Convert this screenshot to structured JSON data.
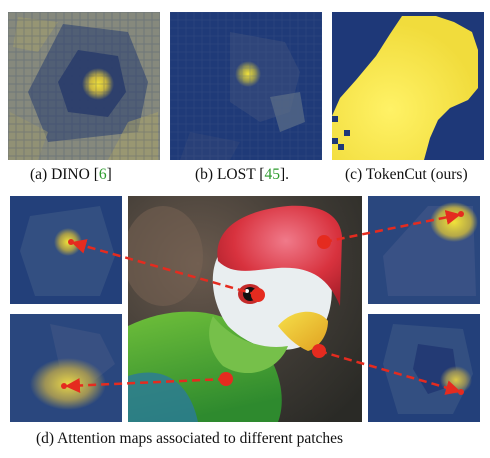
{
  "captions": {
    "a": {
      "text": "(a) DINO [",
      "ref": "6",
      "tail": "]"
    },
    "b": {
      "text": "(b) LOST [",
      "ref": "45",
      "tail": "]."
    },
    "c": {
      "text": "(c) TokenCut (ours)"
    },
    "d": {
      "text": "(d) Attention maps associated to different patches"
    }
  },
  "colors": {
    "map_dark": "#1f3a78",
    "map_mid": "#6b7a8a",
    "map_bright": "#f2e23a",
    "arrow": "#e52b1f",
    "reference_link": "#2e9b2e"
  },
  "panels": [
    {
      "id": "dino",
      "content": "attention-map"
    },
    {
      "id": "lost",
      "content": "attention-map"
    },
    {
      "id": "tokencut",
      "content": "segmentation-mask"
    },
    {
      "id": "bird-photo",
      "content": "photo"
    },
    {
      "id": "map-eye",
      "content": "attention-map"
    },
    {
      "id": "map-crest",
      "content": "attention-map"
    },
    {
      "id": "map-neck",
      "content": "attention-map"
    },
    {
      "id": "map-beak",
      "content": "attention-map"
    }
  ]
}
